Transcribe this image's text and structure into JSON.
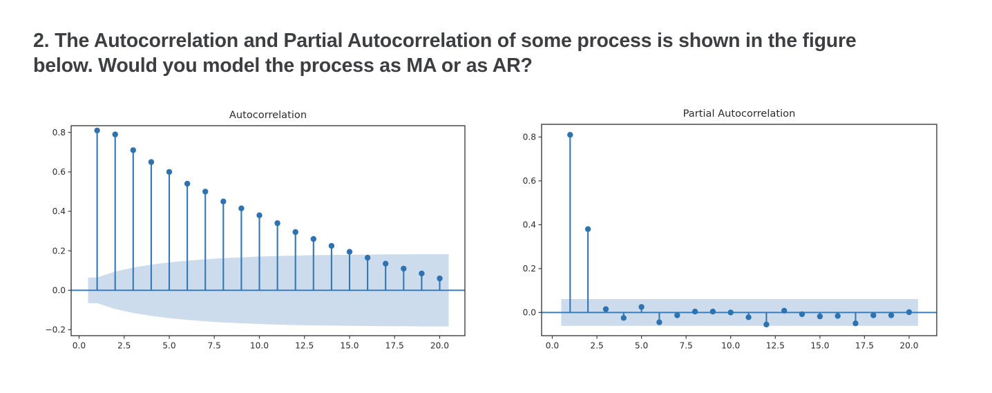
{
  "question": {
    "lines": [
      "2. The Autocorrelation and Partial Autocorrelation of some process is shown in the figure",
      "below. Would you model the process as MA or as AR?"
    ],
    "text_color": "#3c3e41"
  },
  "figure": {
    "style_colors": {
      "stem": "#3377b4",
      "marker": "#2e73b1",
      "band_fill": "#cddcec",
      "axis": "#3d3d3d",
      "tick_label": "#2b2b2b",
      "title": "#262626"
    }
  },
  "chart_data": [
    {
      "type": "stem",
      "title": "Autocorrelation",
      "xlabel": "",
      "ylabel": "",
      "grid": false,
      "legend": "none",
      "x": [
        1,
        2,
        3,
        4,
        5,
        6,
        7,
        8,
        9,
        10,
        11,
        12,
        13,
        14,
        15,
        16,
        17,
        18,
        19,
        20
      ],
      "values": [
        0.81,
        0.79,
        0.71,
        0.65,
        0.6,
        0.54,
        0.5,
        0.45,
        0.415,
        0.38,
        0.34,
        0.295,
        0.26,
        0.225,
        0.195,
        0.165,
        0.135,
        0.11,
        0.085,
        0.06
      ],
      "zero_line": 0.0,
      "confidence_band": {
        "symmetric": true,
        "x_start": 0.5,
        "x_end": 20.5,
        "upper": [
          0.065,
          0.095,
          0.115,
          0.13,
          0.141,
          0.15,
          0.157,
          0.163,
          0.167,
          0.171,
          0.174,
          0.176,
          0.178,
          0.179,
          0.18,
          0.181,
          0.182,
          0.182,
          0.183,
          0.183
        ]
      },
      "xticks": [
        0.0,
        2.5,
        5.0,
        7.5,
        10.0,
        12.5,
        15.0,
        17.5,
        20.0
      ],
      "xtick_labels": [
        "0.0",
        "2.5",
        "5.0",
        "7.5",
        "10.0",
        "12.5",
        "15.0",
        "17.5",
        "20.0"
      ],
      "yticks": [
        0.8,
        0.6,
        0.4,
        0.2,
        0.0,
        -0.2
      ],
      "ytick_labels": [
        "0.8",
        "0.6",
        "0.4",
        "0.2",
        "0.0",
        "−0.2"
      ],
      "xlim": [
        -0.44,
        21.4
      ],
      "ylim": [
        -0.23,
        0.834
      ]
    },
    {
      "type": "stem",
      "title": "Partial Autocorrelation",
      "xlabel": "",
      "ylabel": "",
      "grid": false,
      "legend": "none",
      "x": [
        1,
        2,
        3,
        4,
        5,
        6,
        7,
        8,
        9,
        10,
        11,
        12,
        13,
        14,
        15,
        16,
        17,
        18,
        19,
        20
      ],
      "values": [
        0.81,
        0.38,
        0.015,
        -0.025,
        0.025,
        -0.045,
        -0.013,
        0.004,
        0.004,
        0.0,
        -0.022,
        -0.055,
        0.008,
        -0.008,
        -0.018,
        -0.016,
        -0.05,
        -0.013,
        -0.013,
        0.001
      ],
      "zero_line": 0.0,
      "confidence_band": {
        "symmetric": true,
        "x_start": 0.5,
        "x_end": 20.5,
        "upper_value": 0.061
      },
      "xticks": [
        0.0,
        2.5,
        5.0,
        7.5,
        10.0,
        12.5,
        15.0,
        17.5,
        20.0
      ],
      "xtick_labels": [
        "0.0",
        "2.5",
        "5.0",
        "7.5",
        "10.0",
        "12.5",
        "15.0",
        "17.5",
        "20.0"
      ],
      "yticks": [
        0.8,
        0.6,
        0.4,
        0.2,
        0.0
      ],
      "ytick_labels": [
        "0.8",
        "0.6",
        "0.4",
        "0.2",
        "0.0"
      ],
      "xlim": [
        -0.6,
        21.55
      ],
      "ylim": [
        -0.106,
        0.858
      ]
    }
  ]
}
